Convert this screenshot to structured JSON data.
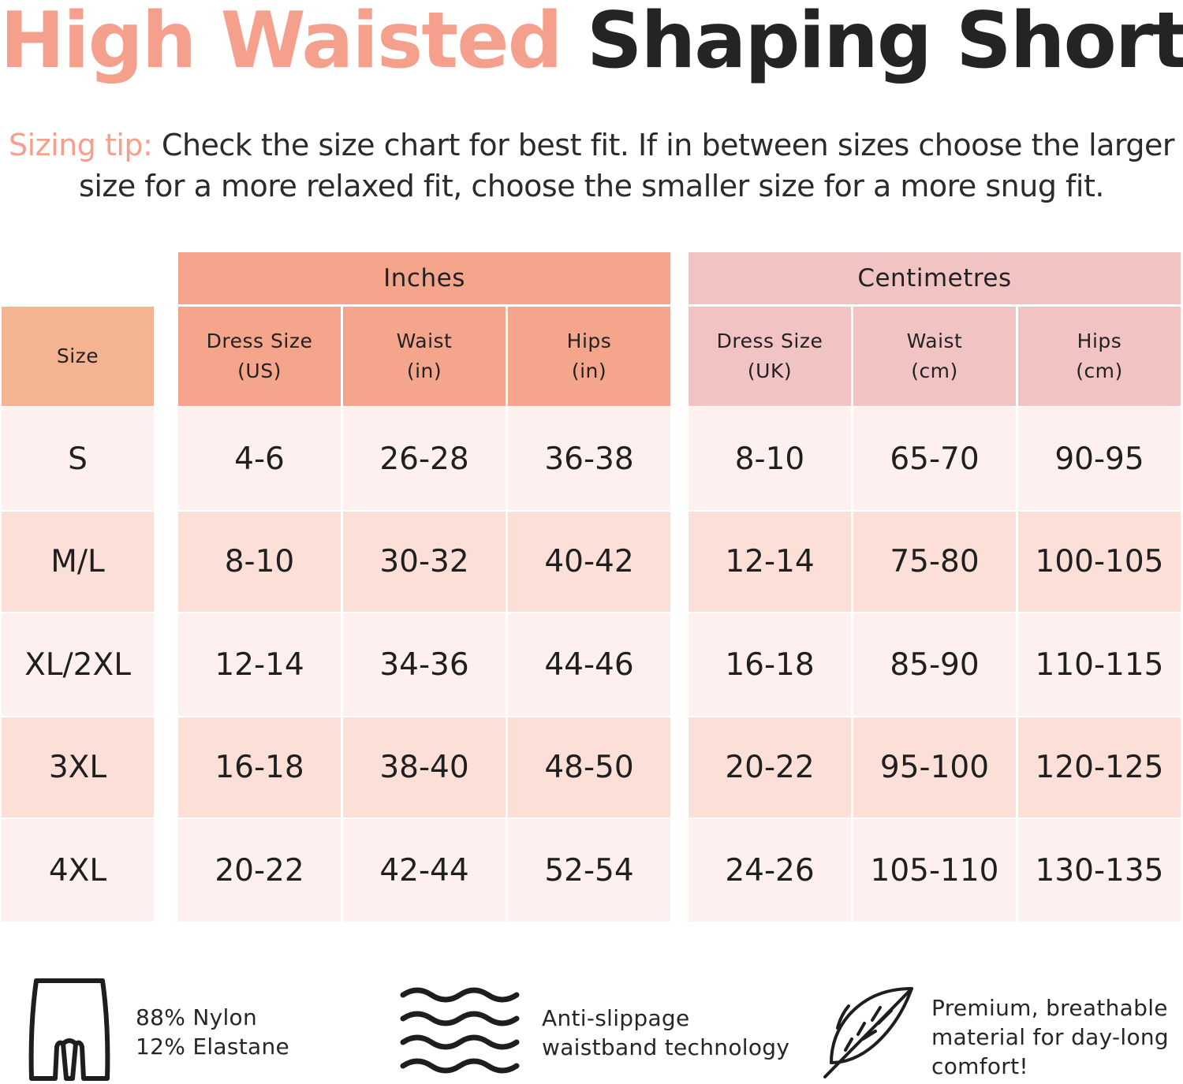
{
  "title": {
    "accent": "High Waisted",
    "main": "Shaping Shorts"
  },
  "tip": {
    "label": "Sizing tip:",
    "line1": " Check the size chart for best fit. If in between sizes choose the larger",
    "line2": "size for a more relaxed fit, choose the smaller size for a more snug fit."
  },
  "table": {
    "groups": {
      "inches": "Inches",
      "centimetres": "Centimetres"
    },
    "size_header": "Size",
    "columns": [
      {
        "line1": "Dress Size",
        "line2": "(US)"
      },
      {
        "line1": "Waist",
        "line2": "(in)"
      },
      {
        "line1": "Hips",
        "line2": "(in)"
      },
      {
        "line1": "Dress Size",
        "line2": "(UK)"
      },
      {
        "line1": "Waist",
        "line2": "(cm)"
      },
      {
        "line1": "Hips",
        "line2": "(cm)"
      }
    ],
    "rows": [
      {
        "size": "S",
        "us": "4-6",
        "waist_in": "26-28",
        "hips_in": "36-38",
        "uk": "8-10",
        "waist_cm": "65-70",
        "hips_cm": "90-95"
      },
      {
        "size": "M/L",
        "us": "8-10",
        "waist_in": "30-32",
        "hips_in": "40-42",
        "uk": "12-14",
        "waist_cm": "75-80",
        "hips_cm": "100-105"
      },
      {
        "size": "XL/2XL",
        "us": "12-14",
        "waist_in": "34-36",
        "hips_in": "44-46",
        "uk": "16-18",
        "waist_cm": "85-90",
        "hips_cm": "110-115"
      },
      {
        "size": "3XL",
        "us": "16-18",
        "waist_in": "38-40",
        "hips_in": "48-50",
        "uk": "20-22",
        "waist_cm": "95-100",
        "hips_cm": "120-125"
      },
      {
        "size": "4XL",
        "us": "20-22",
        "waist_in": "42-44",
        "hips_in": "52-54",
        "uk": "24-26",
        "waist_cm": "105-110",
        "hips_cm": "130-135"
      }
    ]
  },
  "features": [
    {
      "icon": "shorts-icon",
      "line1": "88% Nylon",
      "line2": "12% Elastane"
    },
    {
      "icon": "waves-icon",
      "line1": "Anti-slippage",
      "line2": "waistband technology"
    },
    {
      "icon": "feather-icon",
      "line1": "Premium, breathable",
      "line2": "material for day-long",
      "line3": "comfort!"
    }
  ],
  "colors": {
    "accent": "#f5a08d",
    "inches_header": "#f5a58c",
    "centimetres_header": "#f2c3c3",
    "size_header": "#f5b491",
    "row_light": "#fdf0ee",
    "row_dark": "#fcdfd7"
  }
}
